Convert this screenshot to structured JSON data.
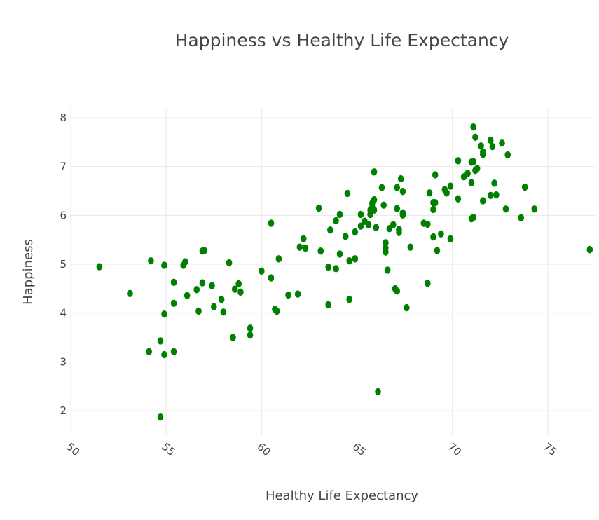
{
  "chart_data": {
    "type": "scatter",
    "title": "Happiness vs Healthy Life Expectancy",
    "xlabel": "Healthy Life Expectancy",
    "ylabel": "Happiness",
    "xlim": [
      50,
      77.5
    ],
    "ylim": [
      1.5,
      8.2
    ],
    "x_ticks": [
      50,
      55,
      60,
      65,
      70,
      75
    ],
    "y_ticks": [
      2,
      3,
      4,
      5,
      6,
      7,
      8
    ],
    "grid": true,
    "legend": "none",
    "marker_color": "#008000",
    "points": [
      [
        51.5,
        4.95
      ],
      [
        53.1,
        4.4
      ],
      [
        54.2,
        5.07
      ],
      [
        54.9,
        4.98
      ],
      [
        55.4,
        4.63
      ],
      [
        55.9,
        4.98
      ],
      [
        56.0,
        5.05
      ],
      [
        56.9,
        5.27
      ],
      [
        57.0,
        5.28
      ],
      [
        56.9,
        4.62
      ],
      [
        57.4,
        4.56
      ],
      [
        56.6,
        4.48
      ],
      [
        56.1,
        4.36
      ],
      [
        55.4,
        4.2
      ],
      [
        56.7,
        4.04
      ],
      [
        57.5,
        4.13
      ],
      [
        57.9,
        4.28
      ],
      [
        58.0,
        4.02
      ],
      [
        58.3,
        5.03
      ],
      [
        58.6,
        4.49
      ],
      [
        58.8,
        4.6
      ],
      [
        58.9,
        4.43
      ],
      [
        58.5,
        3.5
      ],
      [
        59.4,
        3.55
      ],
      [
        59.4,
        3.69
      ],
      [
        54.9,
        3.98
      ],
      [
        54.1,
        3.21
      ],
      [
        55.4,
        3.21
      ],
      [
        54.9,
        3.15
      ],
      [
        54.7,
        3.43
      ],
      [
        54.7,
        1.87
      ],
      [
        60.0,
        4.86
      ],
      [
        60.5,
        5.84
      ],
      [
        60.5,
        4.72
      ],
      [
        60.7,
        4.08
      ],
      [
        60.8,
        4.04
      ],
      [
        60.9,
        5.11
      ],
      [
        61.4,
        4.37
      ],
      [
        61.9,
        4.39
      ],
      [
        62.0,
        5.35
      ],
      [
        62.2,
        5.52
      ],
      [
        62.3,
        5.33
      ],
      [
        63.0,
        6.15
      ],
      [
        63.1,
        5.27
      ],
      [
        63.5,
        4.17
      ],
      [
        63.5,
        4.94
      ],
      [
        63.6,
        5.7
      ],
      [
        63.9,
        5.89
      ],
      [
        63.9,
        4.91
      ],
      [
        64.1,
        5.21
      ],
      [
        64.1,
        6.02
      ],
      [
        64.4,
        5.57
      ],
      [
        64.5,
        6.45
      ],
      [
        64.6,
        4.28
      ],
      [
        64.6,
        5.07
      ],
      [
        64.9,
        5.11
      ],
      [
        64.9,
        5.66
      ],
      [
        65.2,
        5.78
      ],
      [
        65.2,
        6.02
      ],
      [
        65.4,
        5.88
      ],
      [
        65.6,
        5.81
      ],
      [
        65.7,
        6.11
      ],
      [
        65.7,
        6.02
      ],
      [
        65.8,
        6.25
      ],
      [
        65.8,
        6.17
      ],
      [
        65.9,
        6.32
      ],
      [
        65.9,
        6.11
      ],
      [
        66.0,
        5.75
      ],
      [
        65.9,
        6.89
      ],
      [
        66.1,
        2.39
      ],
      [
        66.3,
        6.57
      ],
      [
        66.4,
        6.21
      ],
      [
        66.5,
        5.44
      ],
      [
        66.5,
        5.25
      ],
      [
        66.5,
        5.33
      ],
      [
        66.6,
        4.88
      ],
      [
        66.7,
        5.73
      ],
      [
        66.9,
        5.81
      ],
      [
        67.0,
        4.5
      ],
      [
        67.1,
        4.45
      ],
      [
        67.1,
        6.57
      ],
      [
        67.1,
        6.14
      ],
      [
        67.2,
        5.71
      ],
      [
        67.2,
        5.65
      ],
      [
        67.3,
        6.75
      ],
      [
        67.4,
        6.01
      ],
      [
        67.4,
        6.05
      ],
      [
        67.4,
        6.49
      ],
      [
        67.6,
        4.11
      ],
      [
        67.8,
        5.35
      ],
      [
        68.5,
        5.84
      ],
      [
        68.7,
        5.82
      ],
      [
        68.7,
        4.61
      ],
      [
        68.8,
        6.46
      ],
      [
        69.0,
        6.12
      ],
      [
        69.0,
        6.26
      ],
      [
        69.1,
        6.26
      ],
      [
        69.1,
        6.83
      ],
      [
        69.0,
        5.56
      ],
      [
        69.2,
        5.28
      ],
      [
        69.4,
        5.62
      ],
      [
        69.6,
        6.53
      ],
      [
        69.7,
        6.46
      ],
      [
        69.9,
        6.6
      ],
      [
        69.9,
        5.52
      ],
      [
        70.3,
        7.12
      ],
      [
        70.3,
        6.34
      ],
      [
        70.6,
        6.79
      ],
      [
        70.8,
        6.86
      ],
      [
        71.0,
        7.09
      ],
      [
        71.0,
        6.67
      ],
      [
        71.0,
        5.93
      ],
      [
        71.1,
        7.81
      ],
      [
        71.1,
        7.1
      ],
      [
        71.1,
        5.96
      ],
      [
        71.2,
        7.6
      ],
      [
        71.2,
        6.92
      ],
      [
        71.3,
        6.96
      ],
      [
        71.5,
        7.42
      ],
      [
        71.6,
        7.3
      ],
      [
        71.6,
        7.25
      ],
      [
        71.6,
        6.3
      ],
      [
        72.0,
        7.54
      ],
      [
        72.1,
        7.41
      ],
      [
        72.0,
        6.41
      ],
      [
        72.2,
        6.66
      ],
      [
        72.3,
        6.42
      ],
      [
        72.6,
        7.48
      ],
      [
        72.8,
        6.13
      ],
      [
        72.9,
        7.24
      ],
      [
        73.6,
        5.95
      ],
      [
        73.8,
        6.58
      ],
      [
        74.3,
        6.13
      ],
      [
        77.2,
        5.3
      ]
    ]
  }
}
